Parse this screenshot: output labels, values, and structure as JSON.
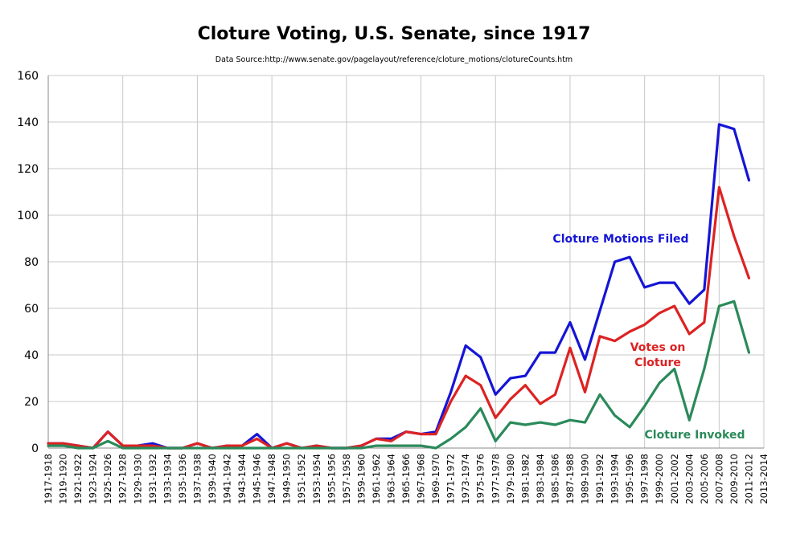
{
  "chart_data": {
    "type": "line",
    "title": "Cloture Voting, U.S. Senate, since 1917",
    "subtitle": "Data Source:http://www.senate.gov/pagelayout/reference/cloture_motions/clotureCounts.htm",
    "xlabel": "",
    "ylabel": "",
    "ylim": [
      0,
      160
    ],
    "yticks": [
      0,
      20,
      40,
      60,
      80,
      100,
      120,
      140,
      160
    ],
    "grid": true,
    "categories": [
      "1917-1918",
      "1919-1920",
      "1921-1922",
      "1923-1924",
      "1925-1926",
      "1927-1928",
      "1929-1930",
      "1931-1932",
      "1933-1934",
      "1935-1936",
      "1937-1938",
      "1939-1940",
      "1941-1942",
      "1943-1944",
      "1945-1946",
      "1947-1948",
      "1949-1950",
      "1951-1952",
      "1953-1954",
      "1955-1956",
      "1957-1958",
      "1959-1960",
      "1961-1962",
      "1963-1964",
      "1965-1966",
      "1967-1968",
      "1969-1970",
      "1971-1972",
      "1973-1974",
      "1975-1976",
      "1977-1978",
      "1979-1980",
      "1981-1982",
      "1983-1984",
      "1985-1986",
      "1987-1988",
      "1989-1990",
      "1991-1992",
      "1993-1994",
      "1995-1996",
      "1997-1998",
      "1999-2000",
      "2001-2002",
      "2003-2004",
      "2005-2006",
      "2007-2008",
      "2009-2010",
      "2011-2012",
      "2013-2014"
    ],
    "series": [
      {
        "name": "Cloture Motions Filed",
        "color": "#1515d6",
        "values": [
          2,
          2,
          1,
          0,
          7,
          1,
          1,
          2,
          0,
          0,
          2,
          0,
          1,
          1,
          6,
          0,
          2,
          0,
          1,
          0,
          0,
          1,
          4,
          4,
          7,
          6,
          7,
          24,
          44,
          39,
          23,
          30,
          31,
          41,
          41,
          54,
          38,
          59,
          80,
          82,
          69,
          71,
          71,
          62,
          68,
          139,
          137,
          115,
          null
        ]
      },
      {
        "name": "Votes on Cloture",
        "color": "#dd2222",
        "values": [
          2,
          2,
          1,
          0,
          7,
          1,
          1,
          1,
          0,
          0,
          2,
          0,
          1,
          1,
          4,
          0,
          2,
          0,
          1,
          0,
          0,
          1,
          4,
          3,
          7,
          6,
          6,
          20,
          31,
          27,
          13,
          21,
          27,
          19,
          23,
          43,
          24,
          48,
          46,
          50,
          53,
          58,
          61,
          49,
          54,
          112,
          91,
          73,
          null
        ]
      },
      {
        "name": "Cloture Invoked",
        "color": "#2a8a5a",
        "values": [
          1,
          1,
          0,
          0,
          3,
          0,
          0,
          0,
          0,
          0,
          0,
          0,
          0,
          0,
          0,
          0,
          0,
          0,
          0,
          0,
          0,
          0,
          1,
          1,
          1,
          1,
          0,
          4,
          9,
          17,
          3,
          11,
          10,
          11,
          10,
          12,
          11,
          23,
          14,
          9,
          18,
          28,
          34,
          12,
          34,
          61,
          63,
          41,
          null
        ]
      }
    ]
  }
}
